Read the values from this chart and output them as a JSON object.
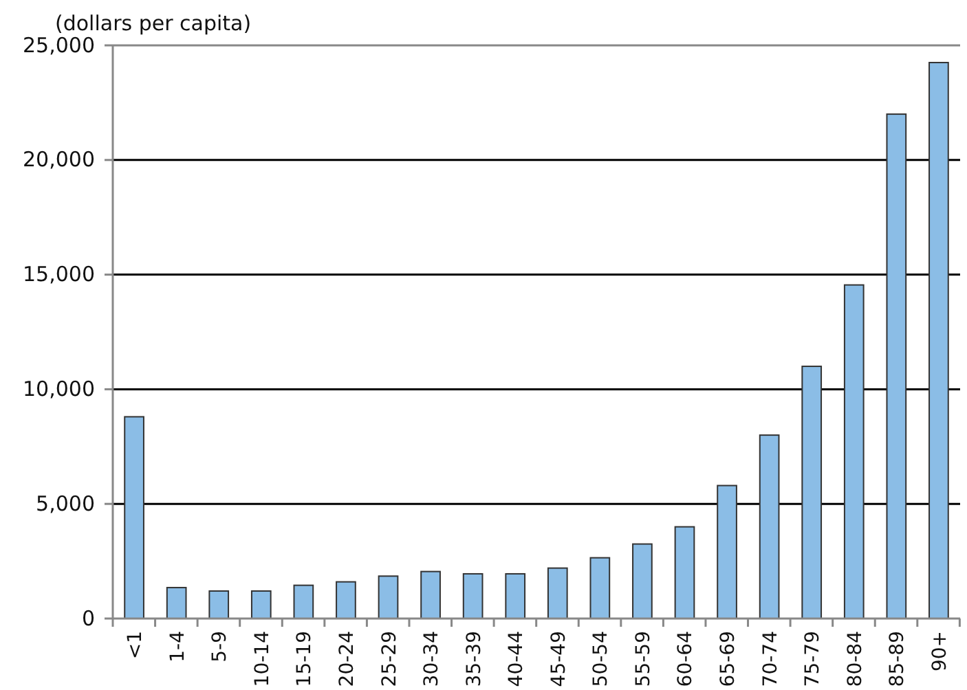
{
  "chart_data": {
    "type": "bar",
    "ylabel": "(dollars per capita)",
    "categories": [
      "<1",
      "1-4",
      "5-9",
      "10-14",
      "15-19",
      "20-24",
      "25-29",
      "30-34",
      "35-39",
      "40-44",
      "45-49",
      "50-54",
      "55-59",
      "60-64",
      "65-69",
      "70-74",
      "75-79",
      "80-84",
      "85-89",
      "90+"
    ],
    "values": [
      8800,
      1350,
      1200,
      1200,
      1450,
      1600,
      1850,
      2050,
      1950,
      1950,
      2200,
      2650,
      3250,
      4000,
      5800,
      8000,
      11000,
      14550,
      22000,
      24250
    ],
    "color": "#8bbde6",
    "ylim": [
      0,
      25000
    ],
    "yticks": [
      {
        "value": 0,
        "label": "0"
      },
      {
        "value": 5000,
        "label": "5,000"
      },
      {
        "value": 10000,
        "label": "10,000"
      },
      {
        "value": 15000,
        "label": "15,000"
      },
      {
        "value": 20000,
        "label": "20,000"
      },
      {
        "value": 25000,
        "label": "25,000"
      }
    ],
    "grid": "y"
  }
}
